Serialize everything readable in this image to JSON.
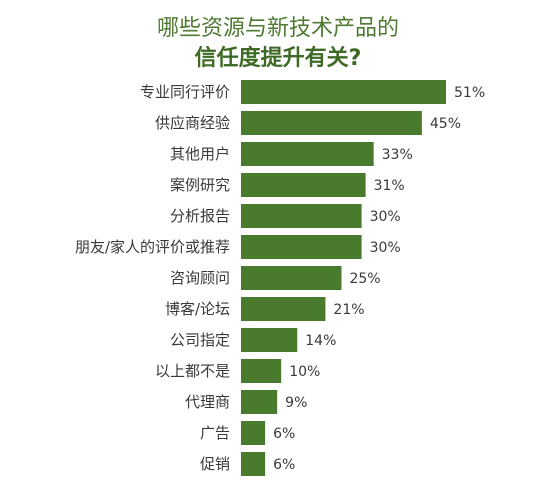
{
  "title": {
    "line1": "哪些资源与新技术产品的",
    "line2": "信任度提升有关?"
  },
  "colors": {
    "bar": "#4a7a2e",
    "title_light": "#4e7a31",
    "title_dark": "#3e6a25",
    "label": "#3a3a3a"
  },
  "chart_data": {
    "type": "bar",
    "orientation": "horizontal",
    "title": "哪些资源与新技术产品的信任度提升有关?",
    "categories": [
      "专业同行评价",
      "供应商经验",
      "其他用户",
      "案例研究",
      "分析报告",
      "朋友/家人的评价或推荐",
      "咨询顾问",
      "博客/论坛",
      "公司指定",
      "以上都不是",
      "代理商",
      "广告",
      "促销"
    ],
    "values": [
      51,
      45,
      33,
      31,
      30,
      30,
      25,
      21,
      14,
      10,
      9,
      6,
      6
    ],
    "value_labels": [
      "51%",
      "45%",
      "33%",
      "31%",
      "30%",
      "30%",
      "25%",
      "21%",
      "14%",
      "10%",
      "9%",
      "6%",
      "6%"
    ],
    "unit": "%",
    "xlim": [
      0,
      51
    ],
    "grid": false,
    "legend": "none"
  }
}
